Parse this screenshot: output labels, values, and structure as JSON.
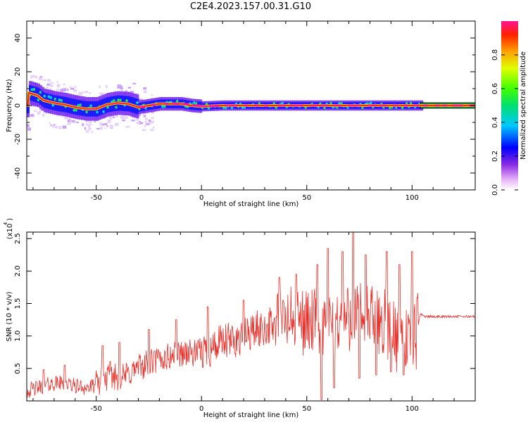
{
  "title": "C2E4.2023.157.00.31.G10",
  "chart_data": [
    {
      "type": "heatmap",
      "xlabel": "Height of straight line (km)",
      "ylabel": "Frequency (Hz)",
      "xlim": [
        -83,
        130
      ],
      "ylim": [
        -50,
        50
      ],
      "x_ticks": [
        -50,
        0,
        50,
        100
      ],
      "y_ticks": [
        40,
        20,
        0,
        -20,
        -40
      ],
      "colorbar": {
        "label": "Normalized spectral amplitude",
        "ticks": [
          "0.0",
          "0.2",
          "0.4",
          "0.6",
          "0.8"
        ],
        "range": [
          0,
          1
        ]
      },
      "ridge": [
        {
          "x": -82,
          "y": 7.5
        },
        {
          "x": -78,
          "y": 6
        },
        {
          "x": -75,
          "y": 3
        },
        {
          "x": -70,
          "y": 1.5
        },
        {
          "x": -65,
          "y": 0.5
        },
        {
          "x": -60,
          "y": -1
        },
        {
          "x": -55,
          "y": -2
        },
        {
          "x": -50,
          "y": -2
        },
        {
          "x": -45,
          "y": 0.5
        },
        {
          "x": -40,
          "y": 1.5
        },
        {
          "x": -35,
          "y": 1
        },
        {
          "x": -30,
          "y": -1
        },
        {
          "x": -25,
          "y": 0
        },
        {
          "x": -20,
          "y": 1
        },
        {
          "x": -15,
          "y": 1
        },
        {
          "x": -10,
          "y": 1
        },
        {
          "x": -5,
          "y": 0
        },
        {
          "x": 0,
          "y": -0.5
        },
        {
          "x": 10,
          "y": 0
        },
        {
          "x": 50,
          "y": 0
        },
        {
          "x": 100,
          "y": 0
        },
        {
          "x": 130,
          "y": 0
        }
      ]
    },
    {
      "type": "line",
      "xlabel": "Height of straight line (km)",
      "ylabel": "SNR (10 * v/v)",
      "y_multiplier_label": "(x10",
      "y_multiplier_exp": "4",
      "xlim": [
        -83,
        130
      ],
      "ylim": [
        0,
        2.6
      ],
      "x_ticks": [
        -50,
        0,
        50,
        100
      ],
      "y_ticks": [
        "0.5",
        "1.0",
        "1.5",
        "2.0",
        "2.5"
      ],
      "line_color": "#e8302a",
      "series": [
        {
          "x": [
            -83,
            -78,
            -73,
            -68,
            -63,
            -58,
            -53,
            -48,
            -43,
            -38,
            -33,
            -28,
            -23,
            -18,
            -13,
            -8,
            -3,
            2,
            7,
            12,
            17,
            22,
            27,
            32,
            37,
            42,
            47,
            52,
            57,
            62,
            67,
            72,
            77,
            82,
            87,
            92,
            97,
            102,
            104,
            106,
            110,
            115,
            120,
            125,
            130
          ],
          "values": [
            0.15,
            0.2,
            0.25,
            0.28,
            0.25,
            0.22,
            0.2,
            0.3,
            0.4,
            0.35,
            0.45,
            0.55,
            0.6,
            0.65,
            0.7,
            0.75,
            0.72,
            0.78,
            0.85,
            0.9,
            0.95,
            1.05,
            1.1,
            1.15,
            1.2,
            1.25,
            1.25,
            1.2,
            1.15,
            1.2,
            1.25,
            1.3,
            1.3,
            1.25,
            1.2,
            1.0,
            0.95,
            1.0,
            1.35,
            1.3,
            1.3,
            1.3,
            1.3,
            1.3,
            1.3
          ],
          "peaks": [
            {
              "x": -75,
              "y": 0.48
            },
            {
              "x": -65,
              "y": 0.55
            },
            {
              "x": -47,
              "y": 0.85
            },
            {
              "x": -39,
              "y": 0.9
            },
            {
              "x": -25,
              "y": 1.1
            },
            {
              "x": -12,
              "y": 1.25
            },
            {
              "x": 3,
              "y": 1.45
            },
            {
              "x": 20,
              "y": 1.55
            },
            {
              "x": 37,
              "y": 1.9
            },
            {
              "x": 45,
              "y": 1.95
            },
            {
              "x": 55,
              "y": 2.1
            },
            {
              "x": 60,
              "y": 2.35
            },
            {
              "x": 67,
              "y": 2.3
            },
            {
              "x": 72,
              "y": 2.6
            },
            {
              "x": 78,
              "y": 2.25
            },
            {
              "x": 88,
              "y": 2.3
            },
            {
              "x": 94,
              "y": 2.1
            },
            {
              "x": 100,
              "y": 2.3
            }
          ],
          "dips": [
            {
              "x": 57,
              "y": 0.02
            },
            {
              "x": 63,
              "y": 0.2
            },
            {
              "x": 75,
              "y": 0.35
            },
            {
              "x": 83,
              "y": 0.4
            },
            {
              "x": 90,
              "y": 0.45
            },
            {
              "x": 96,
              "y": 0.4
            }
          ]
        }
      ]
    }
  ]
}
